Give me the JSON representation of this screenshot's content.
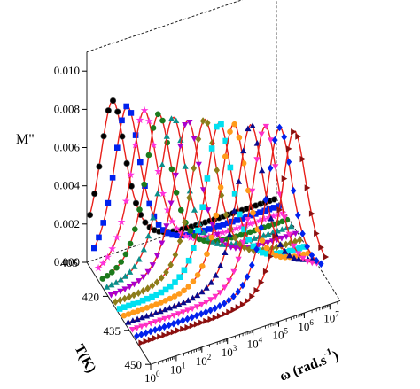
{
  "chart_data": {
    "type": "line",
    "subtype": "3d-waterfall",
    "title": "",
    "zlabel": "M\"",
    "xlabel": "T(K)",
    "ylabel_parts": {
      "main": "ω (rad.s",
      "sup": "-1",
      "close": ")"
    },
    "z_ticks": [
      "0.000",
      "0.002",
      "0.004",
      "0.006",
      "0.008",
      "0.010"
    ],
    "zlim": [
      0,
      0.011
    ],
    "t_ticks": [
      "405",
      "420",
      "435",
      "450"
    ],
    "tlim": [
      405,
      450
    ],
    "omega_ticks": [
      {
        "base": "10",
        "exp": "0"
      },
      {
        "base": "10",
        "exp": "1"
      },
      {
        "base": "10",
        "exp": "2"
      },
      {
        "base": "10",
        "exp": "3"
      },
      {
        "base": "10",
        "exp": "4"
      },
      {
        "base": "10",
        "exp": "5"
      },
      {
        "base": "10",
        "exp": "6"
      },
      {
        "base": "10",
        "exp": "7"
      }
    ],
    "log_omega_lim": [
      0,
      7.4
    ],
    "fit_color": "#e8201a",
    "series": [
      {
        "T": 405,
        "peak_log_omega": 1.0,
        "peak": 0.008,
        "color": "#000000",
        "marker": "sphere"
      },
      {
        "T": 408,
        "peak_log_omega": 1.4,
        "peak": 0.0079,
        "color": "#0022ee",
        "marker": "square"
      },
      {
        "T": 411,
        "peak_log_omega": 1.9,
        "peak": 0.0078,
        "color": "#ff33dd",
        "marker": "star"
      },
      {
        "T": 414,
        "peak_log_omega": 2.3,
        "peak": 0.0078,
        "color": "#1c7a1c",
        "marker": "circle"
      },
      {
        "T": 417,
        "peak_log_omega": 2.7,
        "peak": 0.0078,
        "color": "#0b8f8a",
        "marker": "triangle-up"
      },
      {
        "T": 420,
        "peak_log_omega": 3.1,
        "peak": 0.0078,
        "color": "#aa00cc",
        "marker": "triangle-down"
      },
      {
        "T": 423,
        "peak_log_omega": 3.6,
        "peak": 0.008,
        "color": "#8b7d1a",
        "marker": "diamond"
      },
      {
        "T": 426,
        "peak_log_omega": 4.0,
        "peak": 0.008,
        "color": "#00e0f0",
        "marker": "square"
      },
      {
        "T": 429,
        "peak_log_omega": 4.4,
        "peak": 0.0081,
        "color": "#ff9a1a",
        "marker": "circle"
      },
      {
        "T": 432,
        "peak_log_omega": 4.9,
        "peak": 0.0082,
        "color": "#0a0a8c",
        "marker": "triangle-up"
      },
      {
        "T": 435,
        "peak_log_omega": 5.3,
        "peak": 0.0083,
        "color": "#ff2fc8",
        "marker": "triangle-down"
      },
      {
        "T": 438,
        "peak_log_omega": 5.7,
        "peak": 0.0084,
        "color": "#0022ee",
        "marker": "diamond"
      },
      {
        "T": 441,
        "peak_log_omega": 6.1,
        "peak": 0.0084,
        "color": "#8a1010",
        "marker": "triangle-right"
      }
    ]
  }
}
